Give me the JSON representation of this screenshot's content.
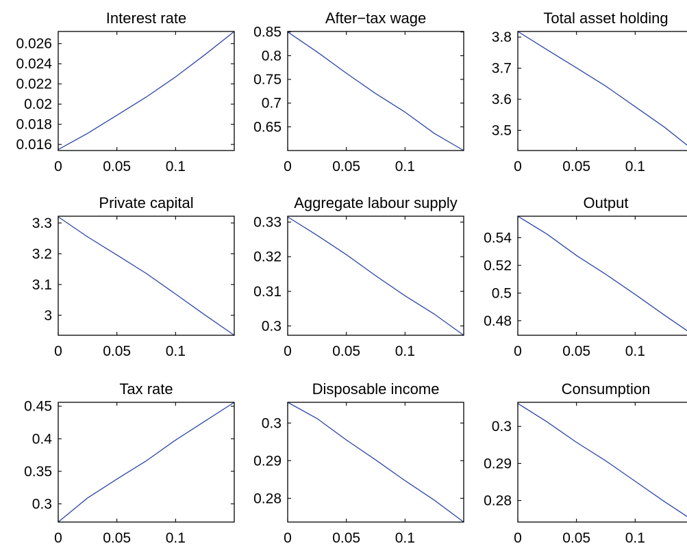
{
  "line_color": "#2b45a8",
  "chart_data": [
    {
      "type": "line",
      "title": "Interest rate",
      "x": [
        0,
        0.025,
        0.05,
        0.075,
        0.1,
        0.125,
        0.15
      ],
      "series": [
        {
          "values": [
            0.0155,
            0.0171,
            0.0189,
            0.0207,
            0.0227,
            0.0249,
            0.0272
          ]
        }
      ],
      "xlim": [
        0,
        0.15
      ],
      "ylim": [
        0.0154,
        0.0272
      ],
      "xticks": [
        0,
        0.05,
        0.1
      ],
      "xticklabels": [
        "0",
        "0.05",
        "0.1"
      ],
      "yticks": [
        0.016,
        0.018,
        0.02,
        0.022,
        0.024,
        0.026
      ],
      "yticklabels": [
        "0.016",
        "0.018",
        "0.02",
        "0.022",
        "0.024",
        "0.026"
      ]
    },
    {
      "type": "line",
      "title": "After−tax wage",
      "x": [
        0,
        0.025,
        0.05,
        0.075,
        0.1,
        0.125,
        0.15
      ],
      "series": [
        {
          "values": [
            0.85,
            0.808,
            0.763,
            0.72,
            0.681,
            0.636,
            0.6
          ]
        }
      ],
      "xlim": [
        0,
        0.15
      ],
      "ylim": [
        0.6,
        0.851
      ],
      "xticks": [
        0,
        0.05,
        0.1
      ],
      "xticklabels": [
        "0",
        "0.05",
        "0.1"
      ],
      "yticks": [
        0.65,
        0.7,
        0.75,
        0.8,
        0.85
      ],
      "yticklabels": [
        "0.65",
        "0.7",
        "0.75",
        "0.8",
        "0.85"
      ]
    },
    {
      "type": "line",
      "title": "Total asset holding",
      "x": [
        0,
        0.025,
        0.05,
        0.075,
        0.1,
        0.125,
        0.15
      ],
      "series": [
        {
          "values": [
            3.818,
            3.759,
            3.701,
            3.642,
            3.576,
            3.51,
            3.435
          ]
        }
      ],
      "xlim": [
        0,
        0.15
      ],
      "ylim": [
        3.435,
        3.818
      ],
      "xticks": [
        0,
        0.05,
        0.1
      ],
      "xticklabels": [
        "0",
        "0.05",
        "0.1"
      ],
      "yticks": [
        3.5,
        3.6,
        3.7,
        3.8
      ],
      "yticklabels": [
        "3.5",
        "3.6",
        "3.7",
        "3.8"
      ]
    },
    {
      "type": "line",
      "title": "Private capital",
      "x": [
        0,
        0.025,
        0.05,
        0.075,
        0.1,
        0.125,
        0.15
      ],
      "series": [
        {
          "values": [
            3.32,
            3.255,
            3.196,
            3.136,
            3.069,
            3.001,
            2.935
          ]
        }
      ],
      "xlim": [
        0,
        0.15
      ],
      "ylim": [
        2.935,
        3.322
      ],
      "xticks": [
        0,
        0.05,
        0.1
      ],
      "xticklabels": [
        "0",
        "0.05",
        "0.1"
      ],
      "yticks": [
        3,
        3.1,
        3.2,
        3.3
      ],
      "yticklabels": [
        "3",
        "3.1",
        "3.2",
        "3.3"
      ]
    },
    {
      "type": "line",
      "title": "Aggregate labour supply",
      "x": [
        0,
        0.025,
        0.05,
        0.075,
        0.1,
        0.125,
        0.15
      ],
      "series": [
        {
          "values": [
            0.3315,
            0.3262,
            0.3206,
            0.3145,
            0.3087,
            0.3034,
            0.2973
          ]
        }
      ],
      "xlim": [
        0,
        0.15
      ],
      "ylim": [
        0.2973,
        0.3317
      ],
      "xticks": [
        0,
        0.05,
        0.1
      ],
      "xticklabels": [
        "0",
        "0.05",
        "0.1"
      ],
      "yticks": [
        0.3,
        0.31,
        0.32,
        0.33
      ],
      "yticklabels": [
        "0.3",
        "0.31",
        "0.32",
        "0.33"
      ]
    },
    {
      "type": "line",
      "title": "Output",
      "x": [
        0,
        0.025,
        0.05,
        0.075,
        0.1,
        0.125,
        0.15
      ],
      "series": [
        {
          "values": [
            0.5555,
            0.5425,
            0.5271,
            0.5135,
            0.499,
            0.484,
            0.4695
          ]
        }
      ],
      "xlim": [
        0,
        0.15
      ],
      "ylim": [
        0.4695,
        0.5555
      ],
      "xticks": [
        0,
        0.05,
        0.1
      ],
      "xticklabels": [
        "0",
        "0.05",
        "0.1"
      ],
      "yticks": [
        0.48,
        0.5,
        0.52,
        0.54
      ],
      "yticklabels": [
        "0.48",
        "0.5",
        "0.52",
        "0.54"
      ]
    },
    {
      "type": "line",
      "title": "Tax rate",
      "x": [
        0,
        0.025,
        0.05,
        0.075,
        0.1,
        0.125,
        0.15
      ],
      "series": [
        {
          "values": [
            0.272,
            0.309,
            0.338,
            0.366,
            0.398,
            0.427,
            0.456
          ]
        }
      ],
      "xlim": [
        0,
        0.15
      ],
      "ylim": [
        0.272,
        0.456
      ],
      "xticks": [
        0,
        0.05,
        0.1
      ],
      "xticklabels": [
        "0",
        "0.05",
        "0.1"
      ],
      "yticks": [
        0.3,
        0.35,
        0.4,
        0.45
      ],
      "yticklabels": [
        "0.3",
        "0.35",
        "0.4",
        "0.45"
      ]
    },
    {
      "type": "line",
      "title": "Disposable income",
      "x": [
        0,
        0.025,
        0.05,
        0.075,
        0.1,
        0.125,
        0.15
      ],
      "series": [
        {
          "values": [
            0.3055,
            0.3012,
            0.2955,
            0.2902,
            0.2847,
            0.2795,
            0.2737
          ]
        }
      ],
      "xlim": [
        0,
        0.15
      ],
      "ylim": [
        0.2737,
        0.3055
      ],
      "xticks": [
        0,
        0.05,
        0.1
      ],
      "xticklabels": [
        "0",
        "0.05",
        "0.1"
      ],
      "yticks": [
        0.28,
        0.29,
        0.3
      ],
      "yticklabels": [
        "0.28",
        "0.29",
        "0.3"
      ]
    },
    {
      "type": "line",
      "title": "Consumption",
      "x": [
        0,
        0.025,
        0.05,
        0.075,
        0.1,
        0.125,
        0.15
      ],
      "series": [
        {
          "values": [
            0.3062,
            0.3012,
            0.2957,
            0.2907,
            0.2852,
            0.2797,
            0.2745
          ]
        }
      ],
      "xlim": [
        0,
        0.15
      ],
      "ylim": [
        0.2742,
        0.3065
      ],
      "xticks": [
        0,
        0.05,
        0.1
      ],
      "xticklabels": [
        "0",
        "0.05",
        "0.1"
      ],
      "yticks": [
        0.28,
        0.29,
        0.3
      ],
      "yticklabels": [
        "0.28",
        "0.29",
        "0.3"
      ]
    }
  ]
}
